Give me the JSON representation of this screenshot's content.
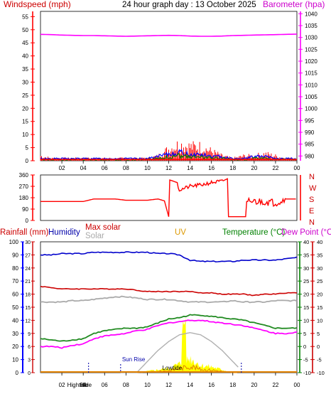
{
  "header": {
    "title": "24 hour graph day : 13 October 2025",
    "left_label": "Windspeed (mph)",
    "right_label": "Barometer (hpa)"
  },
  "colors": {
    "wind": "#ff0000",
    "gust_bars": "#ff0000",
    "wind_blue": "#0000ff",
    "wind_green": "#008000",
    "barometer": "#ff00ff",
    "direction": "#ff0000",
    "humidity": "#0000cc",
    "max_solar": "#b0b0b0",
    "temperature": "#228b22",
    "dew_point": "#ff00ff",
    "rainfall_axis": "#0000ff",
    "solar_fill": "#ffff00",
    "uv": "#cc8800",
    "tide_marker": "#0000aa",
    "temp_axis": "#008000",
    "dew_axis": "#cc0000"
  },
  "x_ticks": [
    "02",
    "04",
    "06",
    "08",
    "10",
    "12",
    "14",
    "16",
    "18",
    "20",
    "22",
    "00"
  ],
  "panel1": {
    "wind_axis": {
      "ylim": [
        0,
        57
      ],
      "ticks": [
        0,
        5,
        10,
        15,
        20,
        25,
        30,
        35,
        40,
        45,
        50,
        55
      ]
    },
    "baro_axis": {
      "ylim": [
        978,
        1041
      ],
      "ticks": [
        980,
        985,
        990,
        995,
        1000,
        1005,
        1010,
        1015,
        1020,
        1025,
        1030,
        1035,
        1040
      ]
    }
  },
  "panel2": {
    "dir_axis": {
      "ylim": [
        0,
        360
      ],
      "ticks": [
        0,
        90,
        180,
        270,
        360
      ]
    },
    "compass_labels": [
      "N",
      "W",
      "S",
      "E",
      "N"
    ]
  },
  "panel3": {
    "labels": {
      "rainfall": "Rainfall (mm)",
      "humidity": "Humidity",
      "max_solar": "Max solar",
      "solar": "Solar",
      "uv": "UV",
      "temperature": "Temperature (°C)",
      "dew_point": "Dew Point (°C)"
    },
    "humidity_axis": {
      "ylim": [
        0,
        100
      ],
      "ticks": [
        0,
        10,
        20,
        30,
        40,
        50,
        60,
        70,
        80,
        90,
        100
      ]
    },
    "rain_axis": {
      "ylim": [
        0,
        30
      ],
      "ticks": [
        0,
        3,
        6,
        9,
        12,
        15,
        18,
        21,
        24,
        27,
        30
      ]
    },
    "temp_axis": {
      "ylim": [
        -10,
        40
      ],
      "ticks": [
        -10,
        -5,
        0,
        5,
        10,
        15,
        20,
        25,
        30,
        35,
        40
      ]
    },
    "annotations": {
      "sunrise": "Sun Rise",
      "lowtide": "Lowtide",
      "hightide": "Hightide",
      "hide": "Hide"
    }
  },
  "chart_data": [
    {
      "type": "line",
      "title": "24 hour graph day : 13 October 2025",
      "ylabel": "Windspeed (mph)",
      "y2label": "Barometer (hpa)",
      "x_hours": [
        0,
        1,
        2,
        3,
        4,
        5,
        6,
        7,
        8,
        9,
        10,
        11,
        12,
        13,
        14,
        15,
        16,
        17,
        18,
        19,
        20,
        21,
        22,
        23,
        24
      ],
      "series": [
        {
          "name": "Barometer (hpa)",
          "axis": "right",
          "values": [
            1031.3,
            1031.2,
            1031.0,
            1030.9,
            1030.8,
            1030.8,
            1030.7,
            1030.6,
            1030.5,
            1030.6,
            1030.7,
            1030.8,
            1030.9,
            1030.8,
            1030.6,
            1030.5,
            1030.5,
            1030.6,
            1030.8,
            1030.9,
            1031.0,
            1031.1,
            1031.2,
            1031.3,
            1031.4
          ]
        },
        {
          "name": "Wind speed (mph)",
          "axis": "left",
          "values": [
            1,
            1,
            1,
            1,
            1,
            1,
            1,
            1,
            1,
            1,
            1,
            2,
            3,
            4,
            3,
            3,
            2,
            2,
            1,
            1,
            2,
            2,
            1,
            1,
            1
          ]
        },
        {
          "name": "Wind gust (mph)",
          "axis": "left",
          "values": [
            2,
            1,
            1,
            1,
            1,
            1,
            1,
            1,
            1,
            1,
            1,
            2,
            5,
            7,
            6,
            6,
            4,
            2,
            1,
            2,
            2,
            3,
            2,
            1,
            1
          ]
        }
      ]
    },
    {
      "type": "line",
      "ylabel": "Wind direction",
      "ylim": [
        0,
        360
      ],
      "x_hours": [
        0,
        1,
        2,
        3,
        4,
        5,
        6,
        7,
        8,
        9,
        10,
        11,
        11.6,
        12,
        12.1,
        12.8,
        13,
        14,
        15,
        16,
        17,
        17.5,
        17.55,
        19.2,
        19.3,
        20,
        21,
        22,
        23,
        24
      ],
      "series": [
        {
          "name": "Wind direction (deg)",
          "values": [
            150,
            150,
            150,
            150,
            150,
            170,
            170,
            170,
            160,
            160,
            160,
            170,
            155,
            30,
            320,
            300,
            240,
            270,
            280,
            300,
            310,
            330,
            30,
            30,
            150,
            150,
            150,
            140,
            170,
            170
          ]
        }
      ]
    },
    {
      "type": "line",
      "x_hours": [
        0,
        1,
        2,
        3,
        4,
        5,
        6,
        7,
        8,
        9,
        10,
        11,
        12,
        13,
        14,
        15,
        16,
        17,
        18,
        19,
        20,
        21,
        22,
        23,
        24
      ],
      "series": [
        {
          "name": "Humidity",
          "axis": "humidity",
          "values": [
            90,
            90,
            91,
            91,
            91,
            92,
            92,
            92,
            92,
            92,
            92,
            91,
            91,
            90,
            86,
            85,
            85,
            85,
            85,
            86,
            86,
            86,
            86,
            87,
            88
          ]
        },
        {
          "name": "Max solar",
          "axis": "humidity",
          "values": [
            0,
            0,
            0,
            0,
            0,
            0,
            0,
            0,
            0,
            0,
            5,
            10,
            14,
            17,
            18,
            17,
            14,
            10,
            5,
            0,
            0,
            0,
            0,
            0,
            0
          ]
        },
        {
          "name": "Solar",
          "axis": "humidity",
          "values": [
            0,
            0,
            0,
            0,
            0,
            0,
            0,
            0,
            0,
            0,
            1,
            2,
            3,
            6,
            10,
            5,
            4,
            2,
            0,
            0,
            0,
            0,
            0,
            0,
            0
          ]
        },
        {
          "name": "Temperature (°C)",
          "axis": "temp",
          "values": [
            3,
            2.5,
            2,
            2.5,
            3,
            5,
            6,
            6.5,
            7,
            7,
            7.5,
            9,
            10.5,
            11,
            12,
            12,
            11.5,
            11,
            10.5,
            10,
            9,
            8,
            7,
            7,
            7
          ]
        },
        {
          "name": "Dew Point (°C)",
          "axis": "temp",
          "values": [
            0,
            0,
            -0.5,
            0.5,
            1,
            3,
            4,
            4.5,
            5,
            6,
            6.5,
            8,
            9,
            9.5,
            10,
            10,
            9.5,
            9,
            8.5,
            8,
            7,
            6,
            5,
            5,
            5.5
          ]
        },
        {
          "name": "Max temp line",
          "axis": "temp",
          "values": [
            23,
            22.5,
            22,
            22,
            22,
            22,
            22,
            22,
            22,
            21.5,
            21,
            21,
            21,
            21,
            21,
            20.5,
            20.5,
            20,
            20,
            20,
            19.5,
            20,
            20,
            20.5,
            20.5
          ]
        },
        {
          "name": "Grey line",
          "axis": "temp",
          "values": [
            17,
            17,
            17,
            17.5,
            17.5,
            18,
            18.5,
            19,
            19,
            18.5,
            18,
            18,
            18,
            17.5,
            17,
            17,
            17,
            17,
            17.5,
            17,
            17,
            17,
            17.5,
            17.5,
            17.5
          ]
        }
      ]
    }
  ]
}
